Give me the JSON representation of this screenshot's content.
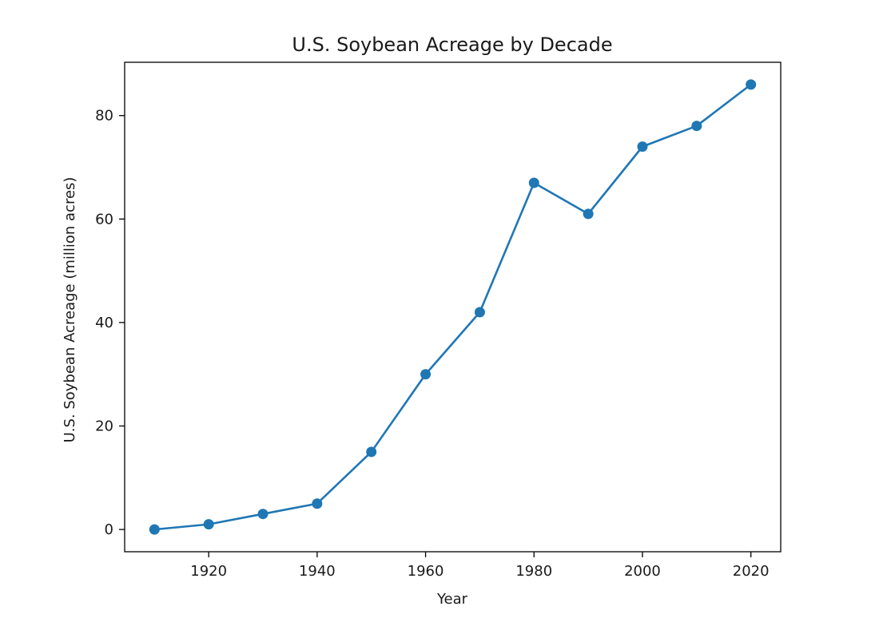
{
  "chart_data": {
    "type": "line",
    "title": "U.S. Soybean Acreage by Decade",
    "xlabel": "Year",
    "ylabel": "U.S. Soybean Acreage (million acres)",
    "x": [
      1910,
      1920,
      1930,
      1940,
      1950,
      1960,
      1970,
      1980,
      1990,
      2000,
      2010,
      2020
    ],
    "series": [
      {
        "values": [
          0,
          1,
          3,
          5,
          15,
          30,
          42,
          67,
          61,
          74,
          78,
          86
        ],
        "color": "#1f77b4",
        "marker": "circle"
      }
    ],
    "xlim": [
      1904.5,
      2025.5
    ],
    "ylim": [
      -4.3,
      90.3
    ],
    "xticks": [
      1920,
      1940,
      1960,
      1980,
      2000,
      2020
    ],
    "yticks": [
      0,
      20,
      40,
      60,
      80
    ],
    "grid": false,
    "legend": "none"
  }
}
